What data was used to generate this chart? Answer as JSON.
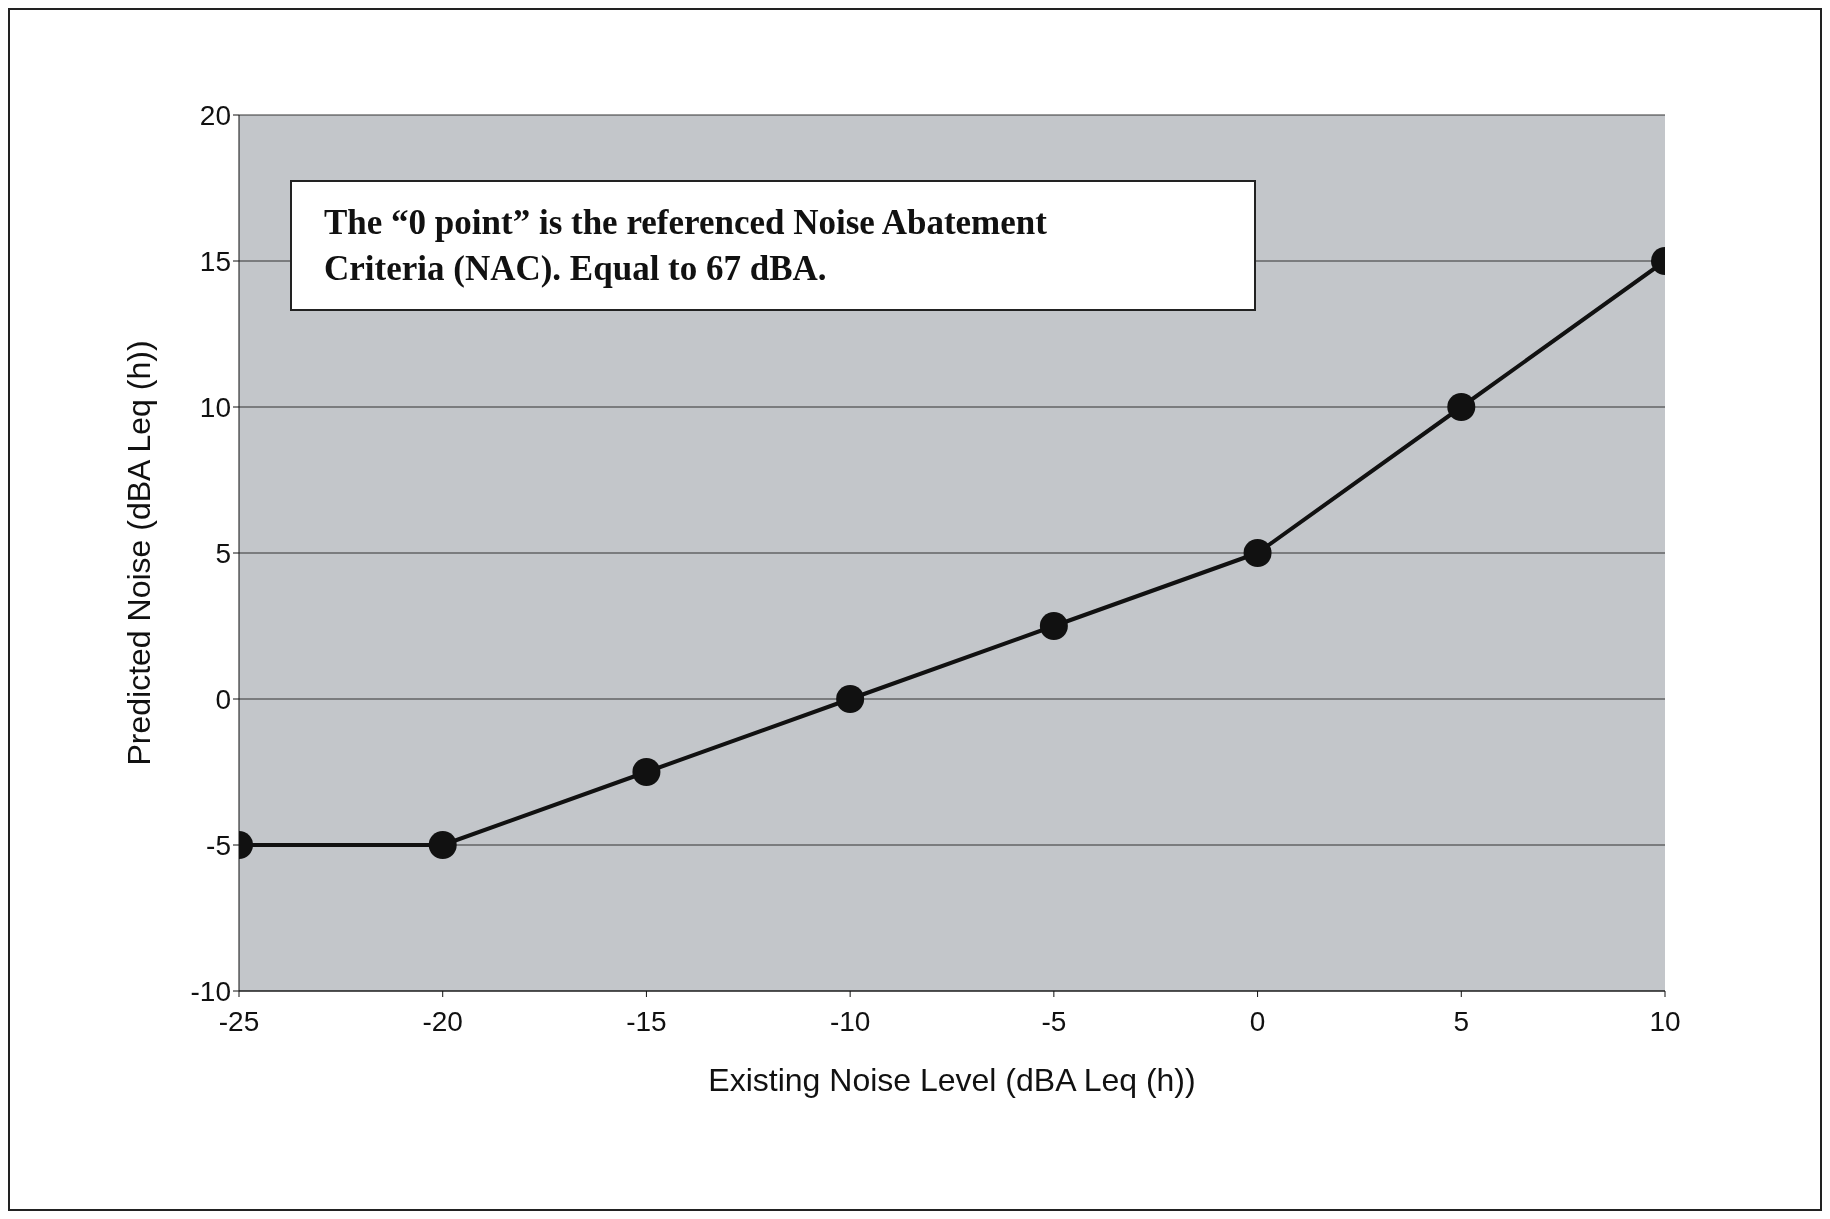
{
  "chart_data": {
    "type": "line",
    "xlabel": "Existing Noise Level (dBA Leq (h))",
    "ylabel": "Predicted Noise (dBA Leq (h))",
    "annotations": [
      "The “0 point” is the referenced Noise Abatement Criteria (NAC). Equal to 67 dBA."
    ],
    "x": [
      -25,
      -20,
      -15,
      -10,
      -5,
      0,
      5,
      10
    ],
    "series": [
      {
        "color": "#111111",
        "values": [
          -5,
          -5,
          -2.5,
          0,
          2.5,
          5,
          10,
          15
        ]
      }
    ],
    "xlim": [
      -25,
      10
    ],
    "xticks": [
      -25,
      -20,
      -15,
      -10,
      -5,
      0,
      5,
      10
    ],
    "ylim": [
      -10,
      20
    ],
    "yticks": [
      -10,
      -5,
      0,
      5,
      10,
      15,
      20
    ],
    "grid": "y",
    "marker": "circle",
    "line_style": "solid"
  }
}
